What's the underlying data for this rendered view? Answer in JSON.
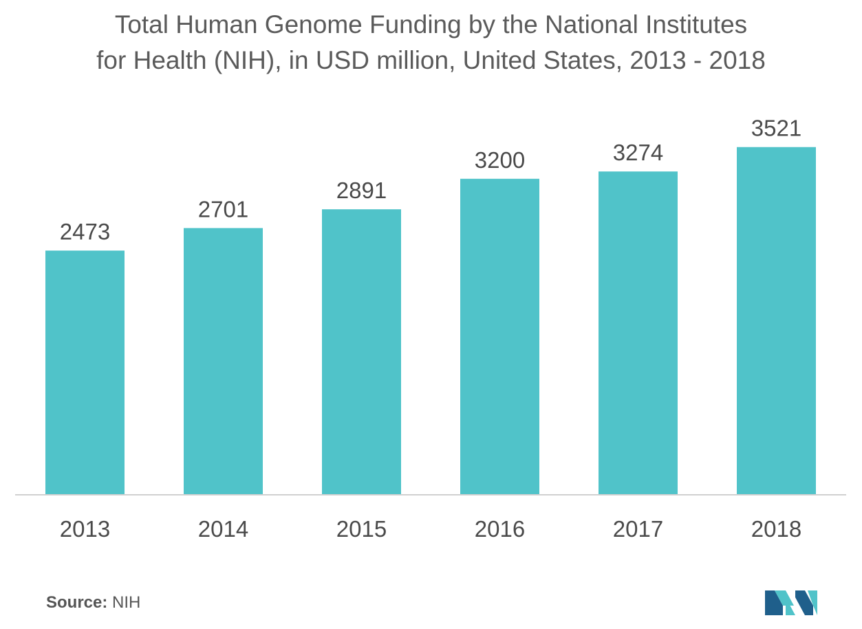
{
  "title_line1": "Total Human Genome Funding by the National Institutes",
  "title_line2": "for Health (NIH), in USD million, United States, 2013 - 2018",
  "source_label": "Source:",
  "source_value": "NIH",
  "logo_icon": "mordor-logo-icon",
  "colors": {
    "bar": "#50c3c9",
    "axis": "#d0d0d0",
    "text": "#555555",
    "logo_dark": "#1f5f8b",
    "logo_light": "#50c3c9"
  },
  "chart_data": {
    "type": "bar",
    "title": "Total Human Genome Funding by the National Institutes for Health (NIH), in USD million, United States, 2013 - 2018",
    "categories": [
      "2013",
      "2014",
      "2015",
      "2016",
      "2017",
      "2018"
    ],
    "values": [
      2473,
      2701,
      2891,
      3200,
      3274,
      3521
    ],
    "xlabel": "",
    "ylabel": "",
    "ylim": [
      0,
      4000
    ],
    "grid": false,
    "data_labels": true
  }
}
